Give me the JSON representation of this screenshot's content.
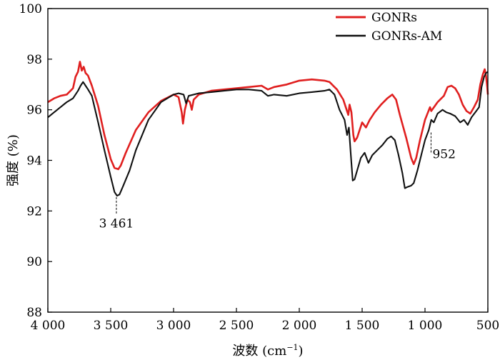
{
  "chart_data": {
    "type": "line",
    "title": "",
    "xlabel": "波数 (cm",
    "xlabel_sup": "−1",
    "xlabel_end": ")",
    "ylabel": "强度 (%)",
    "xlim": [
      4000,
      500
    ],
    "ylim": [
      88,
      100
    ],
    "x_reversed": true,
    "grid": false,
    "legend_position": "top-right",
    "x_ticks": [
      {
        "value": 4000,
        "label": "4 000"
      },
      {
        "value": 3500,
        "label": "3 500"
      },
      {
        "value": 3000,
        "label": "3 000"
      },
      {
        "value": 2500,
        "label": "2 500"
      },
      {
        "value": 2000,
        "label": "2 000"
      },
      {
        "value": 1500,
        "label": "1 500"
      },
      {
        "value": 1000,
        "label": "1 000"
      },
      {
        "value": 500,
        "label": "500"
      }
    ],
    "y_ticks": [
      {
        "value": 88,
        "label": "88"
      },
      {
        "value": 90,
        "label": "90"
      },
      {
        "value": 92,
        "label": "92"
      },
      {
        "value": 94,
        "label": "94"
      },
      {
        "value": 96,
        "label": "96"
      },
      {
        "value": 98,
        "label": "98"
      },
      {
        "value": 100,
        "label": "100"
      }
    ],
    "series": [
      {
        "name": "GONRs",
        "color": "#e02020",
        "points": [
          [
            4000,
            96.3
          ],
          [
            3950,
            96.45
          ],
          [
            3900,
            96.55
          ],
          [
            3850,
            96.6
          ],
          [
            3800,
            96.85
          ],
          [
            3780,
            97.3
          ],
          [
            3760,
            97.5
          ],
          [
            3745,
            97.9
          ],
          [
            3730,
            97.55
          ],
          [
            3715,
            97.7
          ],
          [
            3700,
            97.45
          ],
          [
            3680,
            97.35
          ],
          [
            3650,
            96.95
          ],
          [
            3600,
            96.15
          ],
          [
            3550,
            95.0
          ],
          [
            3500,
            94.05
          ],
          [
            3470,
            93.7
          ],
          [
            3440,
            93.65
          ],
          [
            3420,
            93.8
          ],
          [
            3380,
            94.3
          ],
          [
            3300,
            95.2
          ],
          [
            3200,
            95.9
          ],
          [
            3100,
            96.35
          ],
          [
            3000,
            96.6
          ],
          [
            2960,
            96.5
          ],
          [
            2935,
            95.9
          ],
          [
            2925,
            95.45
          ],
          [
            2910,
            96.0
          ],
          [
            2890,
            96.4
          ],
          [
            2870,
            96.3
          ],
          [
            2855,
            96.0
          ],
          [
            2840,
            96.4
          ],
          [
            2800,
            96.6
          ],
          [
            2700,
            96.75
          ],
          [
            2600,
            96.8
          ],
          [
            2500,
            96.85
          ],
          [
            2400,
            96.9
          ],
          [
            2300,
            96.95
          ],
          [
            2250,
            96.8
          ],
          [
            2200,
            96.9
          ],
          [
            2100,
            97.0
          ],
          [
            2000,
            97.15
          ],
          [
            1900,
            97.2
          ],
          [
            1800,
            97.15
          ],
          [
            1760,
            97.1
          ],
          [
            1700,
            96.8
          ],
          [
            1650,
            96.4
          ],
          [
            1610,
            95.8
          ],
          [
            1600,
            96.2
          ],
          [
            1585,
            95.9
          ],
          [
            1570,
            95.0
          ],
          [
            1560,
            94.75
          ],
          [
            1540,
            94.9
          ],
          [
            1520,
            95.2
          ],
          [
            1500,
            95.5
          ],
          [
            1470,
            95.3
          ],
          [
            1440,
            95.6
          ],
          [
            1400,
            95.9
          ],
          [
            1350,
            96.2
          ],
          [
            1300,
            96.45
          ],
          [
            1260,
            96.6
          ],
          [
            1230,
            96.4
          ],
          [
            1200,
            95.8
          ],
          [
            1150,
            94.9
          ],
          [
            1110,
            94.1
          ],
          [
            1090,
            93.85
          ],
          [
            1070,
            94.1
          ],
          [
            1040,
            94.8
          ],
          [
            1000,
            95.6
          ],
          [
            960,
            96.1
          ],
          [
            950,
            95.95
          ],
          [
            900,
            96.3
          ],
          [
            850,
            96.55
          ],
          [
            820,
            96.9
          ],
          [
            790,
            96.95
          ],
          [
            760,
            96.85
          ],
          [
            730,
            96.6
          ],
          [
            700,
            96.2
          ],
          [
            670,
            95.95
          ],
          [
            640,
            95.85
          ],
          [
            610,
            96.1
          ],
          [
            580,
            96.4
          ],
          [
            560,
            97.0
          ],
          [
            540,
            97.4
          ],
          [
            525,
            97.6
          ],
          [
            515,
            97.35
          ],
          [
            505,
            96.9
          ],
          [
            500,
            96.6
          ]
        ]
      },
      {
        "name": "GONRs-AM",
        "color": "#111111",
        "points": [
          [
            4000,
            95.7
          ],
          [
            3950,
            95.9
          ],
          [
            3900,
            96.1
          ],
          [
            3850,
            96.3
          ],
          [
            3800,
            96.45
          ],
          [
            3760,
            96.75
          ],
          [
            3740,
            96.95
          ],
          [
            3720,
            97.1
          ],
          [
            3700,
            96.95
          ],
          [
            3680,
            96.8
          ],
          [
            3650,
            96.55
          ],
          [
            3600,
            95.5
          ],
          [
            3550,
            94.4
          ],
          [
            3500,
            93.35
          ],
          [
            3470,
            92.75
          ],
          [
            3450,
            92.6
          ],
          [
            3430,
            92.65
          ],
          [
            3400,
            93.0
          ],
          [
            3350,
            93.6
          ],
          [
            3300,
            94.4
          ],
          [
            3200,
            95.6
          ],
          [
            3100,
            96.3
          ],
          [
            3000,
            96.6
          ],
          [
            2960,
            96.65
          ],
          [
            2920,
            96.6
          ],
          [
            2900,
            96.25
          ],
          [
            2880,
            96.55
          ],
          [
            2800,
            96.65
          ],
          [
            2700,
            96.7
          ],
          [
            2600,
            96.75
          ],
          [
            2500,
            96.8
          ],
          [
            2400,
            96.8
          ],
          [
            2300,
            96.75
          ],
          [
            2250,
            96.55
          ],
          [
            2200,
            96.6
          ],
          [
            2100,
            96.55
          ],
          [
            2000,
            96.65
          ],
          [
            1900,
            96.7
          ],
          [
            1800,
            96.75
          ],
          [
            1760,
            96.8
          ],
          [
            1720,
            96.6
          ],
          [
            1680,
            96.0
          ],
          [
            1640,
            95.6
          ],
          [
            1620,
            95.0
          ],
          [
            1605,
            95.3
          ],
          [
            1590,
            94.2
          ],
          [
            1575,
            93.2
          ],
          [
            1560,
            93.25
          ],
          [
            1540,
            93.6
          ],
          [
            1510,
            94.1
          ],
          [
            1480,
            94.3
          ],
          [
            1450,
            93.9
          ],
          [
            1420,
            94.2
          ],
          [
            1380,
            94.4
          ],
          [
            1340,
            94.6
          ],
          [
            1300,
            94.85
          ],
          [
            1270,
            94.95
          ],
          [
            1240,
            94.8
          ],
          [
            1210,
            94.2
          ],
          [
            1180,
            93.5
          ],
          [
            1160,
            92.9
          ],
          [
            1140,
            92.95
          ],
          [
            1110,
            93.0
          ],
          [
            1090,
            93.1
          ],
          [
            1060,
            93.6
          ],
          [
            1030,
            94.2
          ],
          [
            1000,
            94.8
          ],
          [
            970,
            95.2
          ],
          [
            950,
            95.6
          ],
          [
            930,
            95.5
          ],
          [
            900,
            95.85
          ],
          [
            860,
            96.0
          ],
          [
            830,
            95.9
          ],
          [
            800,
            95.85
          ],
          [
            760,
            95.75
          ],
          [
            720,
            95.5
          ],
          [
            690,
            95.6
          ],
          [
            660,
            95.4
          ],
          [
            630,
            95.7
          ],
          [
            600,
            95.9
          ],
          [
            570,
            96.1
          ],
          [
            550,
            96.9
          ],
          [
            530,
            97.3
          ],
          [
            515,
            97.45
          ],
          [
            500,
            97.5
          ]
        ]
      }
    ],
    "annotations": [
      {
        "label": "3 461",
        "x": 3455,
        "y_from": 92.55,
        "y_to": 91.85
      },
      {
        "label": "952",
        "x": 952,
        "y_from": 95.1,
        "y_to": 94.25
      }
    ]
  }
}
